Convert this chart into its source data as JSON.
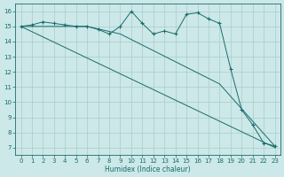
{
  "xlabel": "Humidex (Indice chaleur)",
  "ylabel": "",
  "xlim": [
    -0.5,
    23.5
  ],
  "ylim": [
    6.5,
    16.5
  ],
  "xticks": [
    0,
    1,
    2,
    3,
    4,
    5,
    6,
    7,
    8,
    9,
    10,
    11,
    12,
    13,
    14,
    15,
    16,
    17,
    18,
    19,
    20,
    21,
    22,
    23
  ],
  "yticks": [
    7,
    8,
    9,
    10,
    11,
    12,
    13,
    14,
    15,
    16
  ],
  "bg_color": "#cce8e8",
  "line_color": "#1a6b6b",
  "grid_color": "#aacccc",
  "line1_x": [
    0,
    1,
    2,
    3,
    4,
    5,
    6,
    7,
    8,
    9,
    10,
    11,
    12,
    13,
    14,
    15,
    16,
    17,
    18,
    19,
    20,
    21,
    22,
    23
  ],
  "line1_y": [
    15.0,
    15.1,
    15.3,
    15.2,
    15.1,
    15.0,
    15.0,
    14.8,
    14.5,
    15.0,
    16.0,
    15.2,
    14.5,
    14.7,
    14.5,
    15.8,
    15.9,
    15.5,
    15.2,
    12.2,
    9.5,
    8.5,
    7.3,
    7.1
  ],
  "line2_x": [
    0,
    23
  ],
  "line2_y": [
    15.0,
    7.0
  ],
  "line3_x": [
    0,
    6,
    9,
    18,
    23
  ],
  "line3_y": [
    15.0,
    15.0,
    14.5,
    11.2,
    7.1
  ],
  "marker_x": [
    0,
    1,
    2,
    3,
    4,
    5,
    6,
    7,
    8,
    9,
    10,
    11,
    12,
    13,
    14,
    15,
    16,
    17,
    18,
    19,
    20,
    21,
    22,
    23
  ],
  "marker_y": [
    15.0,
    15.1,
    15.3,
    15.2,
    15.1,
    15.0,
    15.0,
    14.8,
    14.5,
    15.0,
    16.0,
    15.2,
    14.5,
    14.7,
    14.5,
    15.8,
    15.9,
    15.5,
    15.2,
    12.2,
    9.5,
    8.5,
    7.3,
    7.1
  ],
  "figsize": [
    3.2,
    2.0
  ],
  "dpi": 100
}
